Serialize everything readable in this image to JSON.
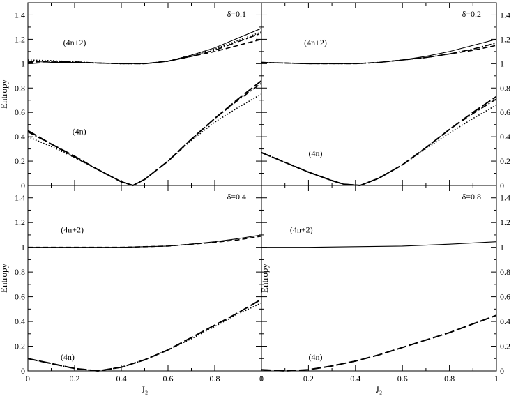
{
  "chart_data": [
    {
      "panel": "top-left",
      "type": "line",
      "annotation": "δ=0.1",
      "xlabel": "",
      "ylabel": "Entropy",
      "xlim": [
        0,
        1
      ],
      "ylim": [
        0,
        1.5
      ],
      "xticks": [],
      "yticks": [
        "0",
        "0.2",
        "0.4",
        "0.6",
        "0.8",
        "1",
        "1.2",
        "1.4"
      ],
      "series_labels": [
        {
          "text": "(4n+2)",
          "x": 0.2,
          "y": 1.15
        },
        {
          "text": "(4n)",
          "x": 0.22,
          "y": 0.42
        }
      ],
      "series": [
        {
          "group": "4n+2",
          "style": "solid",
          "values": [
            [
              0,
              1.0
            ],
            [
              0.1,
              1.01
            ],
            [
              0.2,
              1.01
            ],
            [
              0.3,
              1.005
            ],
            [
              0.4,
              1.0
            ],
            [
              0.5,
              1.0
            ],
            [
              0.6,
              1.02
            ],
            [
              0.7,
              1.07
            ],
            [
              0.8,
              1.13
            ],
            [
              0.9,
              1.21
            ],
            [
              1.0,
              1.29
            ]
          ]
        },
        {
          "group": "4n+2",
          "style": "dashdot",
          "values": [
            [
              0,
              1.02
            ],
            [
              0.1,
              1.02
            ],
            [
              0.2,
              1.015
            ],
            [
              0.3,
              1.005
            ],
            [
              0.4,
              1.0
            ],
            [
              0.5,
              1.0
            ],
            [
              0.6,
              1.02
            ],
            [
              0.7,
              1.06
            ],
            [
              0.8,
              1.11
            ],
            [
              0.9,
              1.18
            ],
            [
              1.0,
              1.25
            ]
          ]
        },
        {
          "group": "4n+2",
          "style": "dashed",
          "values": [
            [
              0,
              1.01
            ],
            [
              0.1,
              1.02
            ],
            [
              0.2,
              1.01
            ],
            [
              0.3,
              1.005
            ],
            [
              0.4,
              1.0
            ],
            [
              0.5,
              1.0
            ],
            [
              0.6,
              1.02
            ],
            [
              0.7,
              1.06
            ],
            [
              0.8,
              1.1
            ],
            [
              0.9,
              1.15
            ],
            [
              1.0,
              1.2
            ]
          ]
        },
        {
          "group": "4n+2",
          "style": "dotted",
          "values": [
            [
              0,
              1.03
            ],
            [
              0.1,
              1.025
            ],
            [
              0.2,
              1.015
            ],
            [
              0.3,
              1.005
            ],
            [
              0.4,
              1.0
            ],
            [
              0.5,
              1.0
            ],
            [
              0.6,
              1.02
            ],
            [
              0.7,
              1.07
            ],
            [
              0.8,
              1.12
            ],
            [
              0.9,
              1.19
            ],
            [
              1.0,
              1.26
            ]
          ]
        },
        {
          "group": "4n",
          "style": "longdash",
          "values": [
            [
              0,
              0.45
            ],
            [
              0.1,
              0.34
            ],
            [
              0.2,
              0.24
            ],
            [
              0.3,
              0.13
            ],
            [
              0.4,
              0.03
            ],
            [
              0.45,
              0.0
            ],
            [
              0.5,
              0.05
            ],
            [
              0.6,
              0.2
            ],
            [
              0.7,
              0.38
            ],
            [
              0.8,
              0.55
            ],
            [
              0.9,
              0.71
            ],
            [
              1.0,
              0.86
            ]
          ]
        },
        {
          "group": "4n",
          "style": "dashdot",
          "values": [
            [
              0,
              0.44
            ],
            [
              0.1,
              0.34
            ],
            [
              0.2,
              0.23
            ],
            [
              0.3,
              0.13
            ],
            [
              0.4,
              0.03
            ],
            [
              0.45,
              0.0
            ],
            [
              0.5,
              0.05
            ],
            [
              0.6,
              0.2
            ],
            [
              0.7,
              0.38
            ],
            [
              0.8,
              0.55
            ],
            [
              0.9,
              0.7
            ],
            [
              1.0,
              0.84
            ]
          ]
        },
        {
          "group": "4n",
          "style": "dotted",
          "values": [
            [
              0,
              0.4
            ],
            [
              0.1,
              0.32
            ],
            [
              0.2,
              0.23
            ],
            [
              0.3,
              0.13
            ],
            [
              0.4,
              0.03
            ],
            [
              0.45,
              0.0
            ],
            [
              0.5,
              0.05
            ],
            [
              0.6,
              0.2
            ],
            [
              0.7,
              0.37
            ],
            [
              0.8,
              0.52
            ],
            [
              0.9,
              0.64
            ],
            [
              1.0,
              0.75
            ]
          ]
        }
      ]
    },
    {
      "panel": "top-right",
      "type": "line",
      "annotation": "δ=0.2",
      "xlabel": "",
      "ylabel": "",
      "xlim": [
        0,
        1
      ],
      "ylim": [
        0,
        1.5
      ],
      "xticks": [],
      "yticks": [
        "0",
        "0.2",
        "0.4",
        "0.6",
        "0.8",
        "1",
        "1.2",
        "1.4"
      ],
      "series_labels": [
        {
          "text": "(4n+2)",
          "x": 0.23,
          "y": 1.15
        },
        {
          "text": "(4n)",
          "x": 0.23,
          "y": 0.24
        }
      ],
      "series": [
        {
          "group": "4n+2",
          "style": "solid",
          "values": [
            [
              0,
              1.01
            ],
            [
              0.1,
              1.005
            ],
            [
              0.2,
              1.0
            ],
            [
              0.3,
              1.0
            ],
            [
              0.4,
              1.0
            ],
            [
              0.5,
              1.01
            ],
            [
              0.6,
              1.03
            ],
            [
              0.7,
              1.06
            ],
            [
              0.8,
              1.1
            ],
            [
              0.9,
              1.15
            ],
            [
              1.0,
              1.2
            ]
          ]
        },
        {
          "group": "4n+2",
          "style": "dashdot",
          "values": [
            [
              0,
              1.01
            ],
            [
              0.1,
              1.005
            ],
            [
              0.2,
              1.0
            ],
            [
              0.3,
              1.0
            ],
            [
              0.4,
              1.0
            ],
            [
              0.5,
              1.01
            ],
            [
              0.6,
              1.03
            ],
            [
              0.7,
              1.05
            ],
            [
              0.8,
              1.08
            ],
            [
              0.9,
              1.12
            ],
            [
              1.0,
              1.17
            ]
          ]
        },
        {
          "group": "4n+2",
          "style": "dashed",
          "values": [
            [
              0,
              1.01
            ],
            [
              0.1,
              1.005
            ],
            [
              0.2,
              1.0
            ],
            [
              0.3,
              1.0
            ],
            [
              0.4,
              1.0
            ],
            [
              0.5,
              1.01
            ],
            [
              0.6,
              1.03
            ],
            [
              0.7,
              1.05
            ],
            [
              0.8,
              1.08
            ],
            [
              0.9,
              1.11
            ],
            [
              1.0,
              1.15
            ]
          ]
        },
        {
          "group": "4n",
          "style": "longdash",
          "values": [
            [
              0,
              0.27
            ],
            [
              0.1,
              0.19
            ],
            [
              0.2,
              0.11
            ],
            [
              0.3,
              0.04
            ],
            [
              0.35,
              0.01
            ],
            [
              0.42,
              0.0
            ],
            [
              0.5,
              0.06
            ],
            [
              0.6,
              0.17
            ],
            [
              0.7,
              0.31
            ],
            [
              0.8,
              0.46
            ],
            [
              0.9,
              0.6
            ],
            [
              1.0,
              0.73
            ]
          ]
        },
        {
          "group": "4n",
          "style": "dashdot",
          "values": [
            [
              0,
              0.27
            ],
            [
              0.1,
              0.19
            ],
            [
              0.2,
              0.11
            ],
            [
              0.3,
              0.04
            ],
            [
              0.35,
              0.01
            ],
            [
              0.42,
              0.0
            ],
            [
              0.5,
              0.06
            ],
            [
              0.6,
              0.17
            ],
            [
              0.7,
              0.31
            ],
            [
              0.8,
              0.46
            ],
            [
              0.9,
              0.59
            ],
            [
              1.0,
              0.71
            ]
          ]
        },
        {
          "group": "4n",
          "style": "dotted",
          "values": [
            [
              0,
              0.27
            ],
            [
              0.1,
              0.19
            ],
            [
              0.2,
              0.11
            ],
            [
              0.3,
              0.04
            ],
            [
              0.35,
              0.01
            ],
            [
              0.42,
              0.0
            ],
            [
              0.5,
              0.06
            ],
            [
              0.6,
              0.17
            ],
            [
              0.7,
              0.3
            ],
            [
              0.8,
              0.43
            ],
            [
              0.9,
              0.55
            ],
            [
              1.0,
              0.66
            ]
          ]
        }
      ]
    },
    {
      "panel": "bottom-left",
      "type": "line",
      "annotation": "δ=0.4",
      "xlabel": "J₂",
      "ylabel": "Entropy",
      "xlim": [
        0,
        1
      ],
      "ylim": [
        0,
        1.5
      ],
      "xticks": [
        "0",
        "0.2",
        "0.4",
        "0.6",
        "0.8",
        "1"
      ],
      "yticks": [
        "0",
        "0.2",
        "0.4",
        "0.6",
        "0.8",
        "1",
        "1.2",
        "1.4"
      ],
      "series_labels": [
        {
          "text": "(4n+2)",
          "x": 0.19,
          "y": 1.12
        },
        {
          "text": "(4n)",
          "x": 0.17,
          "y": 0.09
        }
      ],
      "series": [
        {
          "group": "4n+2",
          "style": "solid",
          "values": [
            [
              0,
              1.0
            ],
            [
              0.2,
              1.0
            ],
            [
              0.4,
              1.0
            ],
            [
              0.5,
              1.005
            ],
            [
              0.6,
              1.01
            ],
            [
              0.7,
              1.025
            ],
            [
              0.8,
              1.045
            ],
            [
              0.9,
              1.07
            ],
            [
              1.0,
              1.1
            ]
          ]
        },
        {
          "group": "4n+2",
          "style": "dashed",
          "values": [
            [
              0,
              1.0
            ],
            [
              0.2,
              1.0
            ],
            [
              0.4,
              1.0
            ],
            [
              0.5,
              1.005
            ],
            [
              0.6,
              1.01
            ],
            [
              0.7,
              1.025
            ],
            [
              0.8,
              1.04
            ],
            [
              0.9,
              1.06
            ],
            [
              1.0,
              1.09
            ]
          ]
        },
        {
          "group": "4n",
          "style": "longdash",
          "values": [
            [
              0,
              0.1
            ],
            [
              0.1,
              0.06
            ],
            [
              0.2,
              0.02
            ],
            [
              0.3,
              0.0
            ],
            [
              0.4,
              0.03
            ],
            [
              0.5,
              0.09
            ],
            [
              0.6,
              0.17
            ],
            [
              0.7,
              0.27
            ],
            [
              0.8,
              0.37
            ],
            [
              0.9,
              0.47
            ],
            [
              1.0,
              0.58
            ]
          ]
        },
        {
          "group": "4n",
          "style": "dotted",
          "values": [
            [
              0,
              0.1
            ],
            [
              0.1,
              0.06
            ],
            [
              0.2,
              0.02
            ],
            [
              0.3,
              0.0
            ],
            [
              0.4,
              0.03
            ],
            [
              0.5,
              0.09
            ],
            [
              0.6,
              0.17
            ],
            [
              0.7,
              0.26
            ],
            [
              0.8,
              0.36
            ],
            [
              0.9,
              0.46
            ],
            [
              1.0,
              0.55
            ]
          ]
        }
      ]
    },
    {
      "panel": "bottom-right",
      "type": "line",
      "annotation": "δ=0.8",
      "xlabel": "J₂",
      "ylabel": "Entropy",
      "xlim": [
        0,
        1
      ],
      "ylim": [
        0,
        1.5
      ],
      "xticks": [
        "0",
        "0.2",
        "0.4",
        "0.6",
        "0.8",
        "1"
      ],
      "yticks": [
        "0",
        "0.2",
        "0.4",
        "0.6",
        "0.8",
        "1",
        "1.2",
        "1.4"
      ],
      "series_labels": [
        {
          "text": "(4n+2)",
          "x": 0.17,
          "y": 1.12
        },
        {
          "text": "(4n)",
          "x": 0.23,
          "y": 0.09
        }
      ],
      "series": [
        {
          "group": "4n+2",
          "style": "solid",
          "values": [
            [
              0,
              1.0
            ],
            [
              0.2,
              1.0
            ],
            [
              0.4,
              1.005
            ],
            [
              0.6,
              1.01
            ],
            [
              0.8,
              1.025
            ],
            [
              1.0,
              1.045
            ]
          ]
        },
        {
          "group": "4n",
          "style": "longdash",
          "values": [
            [
              0,
              0.01
            ],
            [
              0.1,
              0.0
            ],
            [
              0.2,
              0.01
            ],
            [
              0.3,
              0.04
            ],
            [
              0.4,
              0.08
            ],
            [
              0.5,
              0.13
            ],
            [
              0.6,
              0.19
            ],
            [
              0.7,
              0.25
            ],
            [
              0.8,
              0.31
            ],
            [
              0.9,
              0.38
            ],
            [
              1.0,
              0.45
            ]
          ]
        }
      ]
    }
  ]
}
